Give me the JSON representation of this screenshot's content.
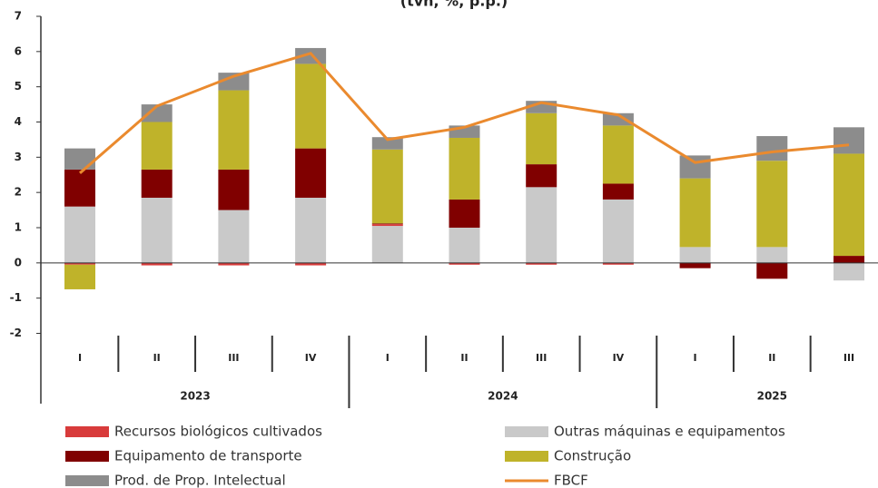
{
  "chart_data": {
    "type": "bar",
    "stacked": true,
    "title": "(tvh, %, p.p.)",
    "groups": [
      {
        "label": "2023",
        "categories": [
          "I",
          "II",
          "III",
          "IV"
        ]
      },
      {
        "label": "2024",
        "categories": [
          "I",
          "II",
          "III",
          "IV"
        ]
      },
      {
        "label": "2025",
        "categories": [
          "I",
          "II",
          "III"
        ]
      }
    ],
    "series": [
      {
        "name": "Outras máquinas e equipamentos",
        "color": "#c9c9c9",
        "values": [
          1.6,
          1.85,
          1.5,
          1.85,
          1.05,
          1.0,
          2.15,
          1.8,
          0.45,
          0.45,
          -0.5
        ]
      },
      {
        "name": "Recursos biológicos cultivados",
        "color": "#d83b3b",
        "values": [
          -0.05,
          -0.07,
          -0.07,
          -0.07,
          0.05,
          -0.05,
          -0.05,
          -0.05,
          0,
          0,
          0
        ]
      },
      {
        "name": "Equipamento de transporte",
        "color": "#800000",
        "values": [
          1.05,
          0.8,
          1.15,
          1.4,
          0.02,
          0.8,
          0.65,
          0.45,
          -0.15,
          -0.45,
          0.2
        ]
      },
      {
        "name": "Construção",
        "color": "#bfb32a",
        "values": [
          -0.7,
          1.35,
          2.25,
          2.4,
          2.1,
          1.75,
          1.45,
          1.65,
          1.95,
          2.45,
          2.9
        ]
      },
      {
        "name": "Prod. de Prop. Intelectual",
        "color": "#8c8c8c",
        "values": [
          0.6,
          0.5,
          0.5,
          0.45,
          0.35,
          0.35,
          0.35,
          0.35,
          0.65,
          0.7,
          0.75
        ]
      },
      {
        "name": "FBCF",
        "color": "#ea8a2e",
        "kind": "line",
        "values": [
          2.55,
          4.45,
          5.3,
          5.95,
          3.5,
          3.85,
          4.55,
          4.2,
          2.85,
          3.15,
          3.35
        ]
      }
    ],
    "ylim": [
      -2,
      7
    ],
    "yticks": [
      -2,
      -1,
      0,
      1,
      2,
      3,
      4,
      5,
      6,
      7
    ]
  }
}
